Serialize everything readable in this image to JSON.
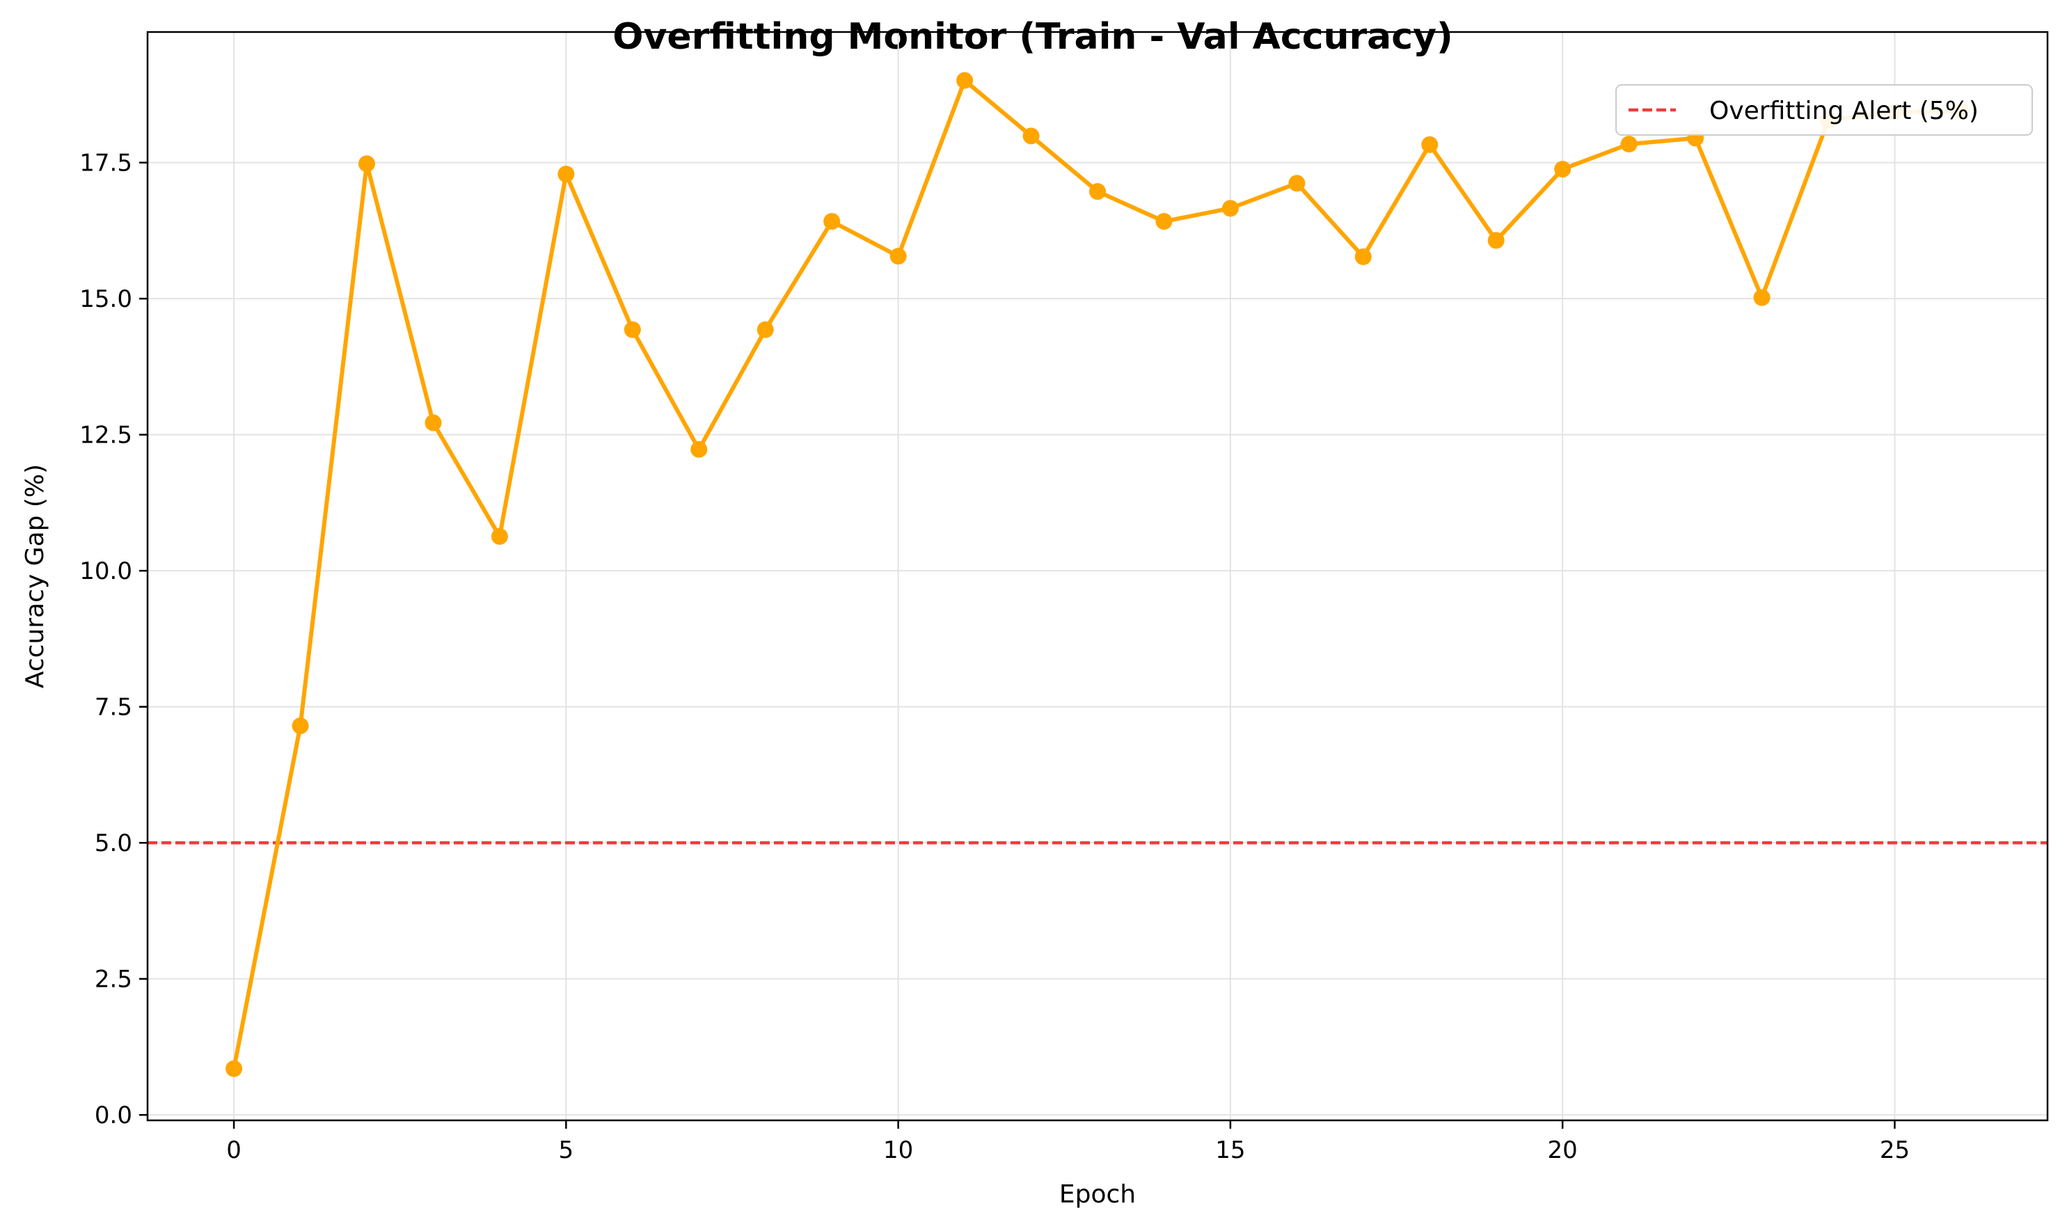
{
  "chart_data": {
    "type": "line",
    "title": "Overfitting Monitor (Train - Val Accuracy)",
    "xlabel": "Epoch",
    "ylabel": "Accuracy Gap (%)",
    "xlim": [
      -1.3,
      27.3
    ],
    "ylim": [
      -0.1,
      19.9
    ],
    "x_ticks": [
      0,
      5,
      10,
      15,
      20,
      25
    ],
    "x_tick_labels": [
      "0",
      "5",
      "10",
      "15",
      "20",
      "25"
    ],
    "y_ticks": [
      0.0,
      2.5,
      5.0,
      7.5,
      10.0,
      12.5,
      15.0,
      17.5
    ],
    "y_tick_labels": [
      "0.0",
      "2.5",
      "5.0",
      "7.5",
      "10.0",
      "12.5",
      "15.0",
      "17.5"
    ],
    "grid": true,
    "legend_position": "top-right",
    "series": [
      {
        "color": "#FFA500",
        "marker": "circle",
        "x": [
          0,
          1,
          2,
          3,
          4,
          5,
          6,
          7,
          8,
          9,
          10,
          11,
          12,
          13,
          14,
          15,
          16,
          17,
          18,
          19,
          20,
          21,
          22,
          23,
          24,
          25,
          26
        ],
        "values": [
          0.85,
          7.15,
          17.48,
          12.72,
          10.63,
          17.29,
          14.43,
          12.23,
          14.43,
          16.42,
          15.78,
          19.01,
          17.99,
          16.97,
          16.42,
          16.66,
          17.12,
          15.77,
          17.83,
          16.07,
          17.38,
          17.84,
          17.95,
          15.02,
          18.28,
          18.43,
          18.44
        ]
      }
    ],
    "reference_line": {
      "name": "Overfitting Alert (5%)",
      "y": 5.0,
      "color": "#F03C3C",
      "style": "dashed"
    }
  }
}
